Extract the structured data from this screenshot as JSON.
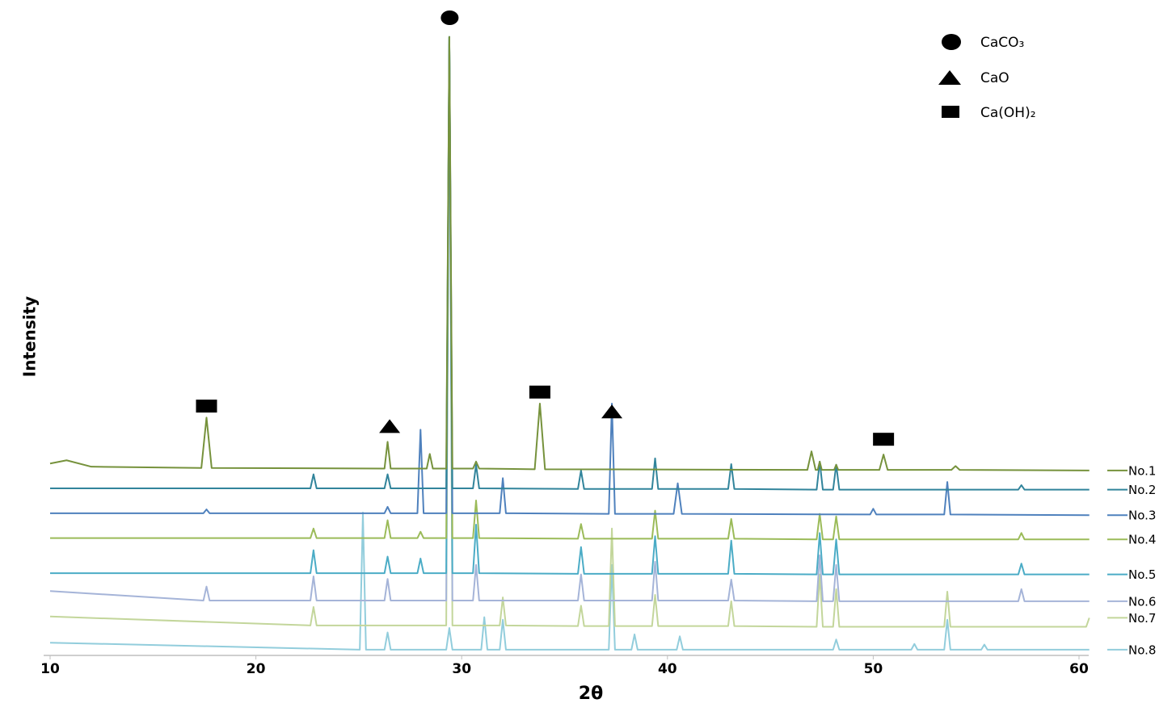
{
  "chart_data": {
    "type": "line",
    "xlabel": "2θ",
    "ylabel": "Intensity",
    "xlim": [
      10,
      60
    ],
    "xticks": [
      10,
      20,
      30,
      40,
      50,
      60
    ],
    "ylim": [
      0,
      100
    ],
    "phase_legend": [
      "CaCO₃",
      "CaO",
      "Ca(OH)₂"
    ],
    "markers": [
      {
        "x": 17.6,
        "y": 39.1,
        "symbol": "square"
      },
      {
        "x": 26.5,
        "y": 35.9,
        "symbol": "triangle"
      },
      {
        "x": 29.3,
        "y": 100,
        "symbol": "circle"
      },
      {
        "x": 33.8,
        "y": 41.3,
        "symbol": "square"
      },
      {
        "x": 37.3,
        "y": 38.2,
        "symbol": "triangle"
      },
      {
        "x": 50.5,
        "y": 33.9,
        "symbol": "square"
      }
    ],
    "series": [
      {
        "name": "No.1",
        "color": "#76923c",
        "x": [
          10,
          10.8,
          12,
          17.35,
          17.6,
          17.85,
          26.25,
          26.4,
          26.55,
          28.3,
          28.45,
          28.6,
          29.25,
          29.4,
          29.55,
          30.55,
          30.7,
          30.85,
          33.55,
          33.8,
          34.05,
          46.8,
          47.0,
          47.2,
          47.3,
          47.4,
          47.5,
          48.1,
          48.2,
          48.3,
          50.3,
          50.5,
          50.7,
          53.8,
          54.0,
          54.2,
          60.5
        ],
        "values": [
          30.1,
          30.6,
          29.6,
          29.4,
          37.3,
          29.4,
          29.3,
          33.5,
          29.3,
          29.3,
          31.6,
          29.3,
          29.3,
          97,
          29.3,
          29.3,
          30.4,
          29.3,
          29.2,
          39.5,
          29.2,
          29.1,
          32.0,
          29.1,
          29.1,
          30.4,
          29.1,
          29.1,
          29.9,
          29.1,
          29.1,
          31.5,
          29.1,
          29.1,
          29.7,
          29.1,
          29.0
        ]
      },
      {
        "name": "No.2",
        "color": "#31849b",
        "x": [
          10,
          22.65,
          22.8,
          22.95,
          26.25,
          26.4,
          26.55,
          29.25,
          29.4,
          29.55,
          30.55,
          30.7,
          30.85,
          35.65,
          35.8,
          35.95,
          39.25,
          39.4,
          39.55,
          42.95,
          43.1,
          43.25,
          47.25,
          47.4,
          47.55,
          48.05,
          48.2,
          48.35,
          57.05,
          57.2,
          57.35,
          60.5
        ],
        "values": [
          26.2,
          26.2,
          28.4,
          26.2,
          26.2,
          28.4,
          26.2,
          26.2,
          97,
          26.2,
          26.2,
          29.9,
          26.2,
          26.1,
          29.0,
          26.1,
          26.1,
          30.9,
          26.1,
          26.1,
          30.0,
          26.1,
          26.0,
          30.4,
          26.0,
          26.0,
          29.9,
          26.0,
          26.0,
          26.7,
          26.0,
          26.0
        ]
      },
      {
        "name": "No.3",
        "color": "#4f81bd",
        "x": [
          10,
          17.45,
          17.6,
          17.75,
          26.25,
          26.4,
          26.55,
          27.85,
          28.0,
          28.15,
          29.25,
          29.4,
          29.55,
          31.85,
          32.0,
          32.15,
          37.15,
          37.3,
          37.45,
          40.3,
          40.5,
          40.7,
          49.85,
          50.0,
          50.15,
          53.45,
          53.6,
          53.75,
          60.5
        ],
        "values": [
          22.3,
          22.3,
          22.9,
          22.3,
          22.3,
          23.3,
          22.3,
          22.3,
          35.4,
          22.3,
          22.3,
          97,
          22.3,
          22.3,
          27.8,
          22.3,
          22.2,
          39.5,
          22.2,
          22.2,
          27.0,
          22.2,
          22.1,
          23.0,
          22.1,
          22.1,
          27.2,
          22.1,
          22.0
        ]
      },
      {
        "name": "No.4",
        "color": "#9bbb59",
        "x": [
          10,
          22.65,
          22.8,
          22.95,
          26.25,
          26.4,
          26.55,
          27.85,
          28.0,
          28.15,
          29.25,
          29.4,
          29.55,
          30.55,
          30.7,
          30.85,
          35.65,
          35.8,
          35.95,
          39.25,
          39.4,
          39.55,
          42.95,
          43.1,
          43.25,
          47.25,
          47.4,
          47.55,
          48.05,
          48.2,
          48.35,
          57.05,
          57.2,
          57.35,
          60.5
        ],
        "values": [
          18.4,
          18.4,
          19.9,
          18.4,
          18.4,
          21.2,
          18.4,
          18.4,
          19.4,
          18.4,
          18.4,
          97,
          18.4,
          18.4,
          24.3,
          18.4,
          18.3,
          20.6,
          18.3,
          18.3,
          22.7,
          18.3,
          18.3,
          21.4,
          18.3,
          18.2,
          22.2,
          18.2,
          18.2,
          21.8,
          18.2,
          18.2,
          19.2,
          18.2,
          18.2
        ]
      },
      {
        "name": "No.5",
        "color": "#4bacc6",
        "x": [
          10,
          22.65,
          22.8,
          22.95,
          26.25,
          26.4,
          26.55,
          27.85,
          28.0,
          28.15,
          29.25,
          29.4,
          29.55,
          30.55,
          30.7,
          30.85,
          35.65,
          35.8,
          35.95,
          39.25,
          39.4,
          39.55,
          42.95,
          43.1,
          43.25,
          47.25,
          47.4,
          47.55,
          48.05,
          48.2,
          48.35,
          57.05,
          57.2,
          57.35,
          60.5
        ],
        "values": [
          12.9,
          12.9,
          16.5,
          12.9,
          12.9,
          15.5,
          12.9,
          12.9,
          15.2,
          12.9,
          12.9,
          97,
          12.9,
          12.9,
          20.5,
          12.9,
          12.8,
          17.0,
          12.8,
          12.8,
          18.7,
          12.8,
          12.8,
          18.0,
          12.8,
          12.7,
          19.2,
          12.7,
          12.7,
          18.2,
          12.7,
          12.7,
          14.4,
          12.7,
          12.7
        ]
      },
      {
        "name": "No.6",
        "color": "#a5b4d8",
        "x": [
          10,
          17.45,
          17.6,
          17.75,
          22.65,
          22.8,
          22.95,
          26.25,
          26.4,
          26.55,
          29.25,
          29.4,
          29.55,
          30.55,
          30.7,
          30.85,
          35.65,
          35.8,
          35.95,
          39.25,
          39.4,
          39.55,
          42.95,
          43.1,
          43.25,
          47.25,
          47.4,
          47.55,
          48.05,
          48.2,
          48.35,
          57.05,
          57.2,
          57.35,
          60.5
        ],
        "values": [
          10.1,
          8.6,
          10.8,
          8.6,
          8.6,
          12.4,
          8.6,
          8.6,
          12.0,
          8.6,
          8.6,
          97,
          8.6,
          8.6,
          14.2,
          8.6,
          8.6,
          12.7,
          8.6,
          8.6,
          14.7,
          8.6,
          8.6,
          11.9,
          8.6,
          8.5,
          15.7,
          8.5,
          8.5,
          14.2,
          8.5,
          8.5,
          10.4,
          8.5,
          8.5
        ]
      },
      {
        "name": "No.7",
        "color": "#c3d69b",
        "x": [
          10,
          22.65,
          22.8,
          22.95,
          29.25,
          29.4,
          29.55,
          31.85,
          32.0,
          32.15,
          35.65,
          35.8,
          35.95,
          37.15,
          37.3,
          37.45,
          39.25,
          39.4,
          39.55,
          42.95,
          43.1,
          43.25,
          47.25,
          47.4,
          47.55,
          48.05,
          48.2,
          48.35,
          53.45,
          53.6,
          53.75,
          60.35,
          60.5
        ],
        "values": [
          6.1,
          4.7,
          7.6,
          4.7,
          4.7,
          97,
          4.7,
          4.7,
          9.1,
          4.7,
          4.6,
          7.8,
          4.6,
          4.6,
          19.9,
          4.6,
          4.6,
          9.5,
          4.6,
          4.6,
          8.5,
          4.6,
          4.5,
          12.7,
          4.5,
          4.5,
          10.4,
          4.5,
          4.5,
          10.0,
          4.5,
          4.5,
          5.9
        ]
      },
      {
        "name": "No.8",
        "color": "#92cddc",
        "x": [
          10,
          25.05,
          25.2,
          25.35,
          26.25,
          26.4,
          26.55,
          29.25,
          29.4,
          29.55,
          30.95,
          31.1,
          31.25,
          31.85,
          32.0,
          32.15,
          37.15,
          37.3,
          37.45,
          38.25,
          38.4,
          38.55,
          40.45,
          40.6,
          40.75,
          48.05,
          48.2,
          48.35,
          51.85,
          52.0,
          52.15,
          53.45,
          53.6,
          53.75,
          55.25,
          55.4,
          55.55,
          60.5
        ],
        "values": [
          2.0,
          0.9,
          22.4,
          0.9,
          0.9,
          3.6,
          0.9,
          0.9,
          4.3,
          0.9,
          0.9,
          6.0,
          0.9,
          0.9,
          5.6,
          0.9,
          0.9,
          14.2,
          0.9,
          0.9,
          3.3,
          0.9,
          0.9,
          3.0,
          0.9,
          0.9,
          2.5,
          0.9,
          0.9,
          1.8,
          0.9,
          0.9,
          5.6,
          0.9,
          0.9,
          1.7,
          0.9,
          0.9
        ]
      }
    ]
  }
}
